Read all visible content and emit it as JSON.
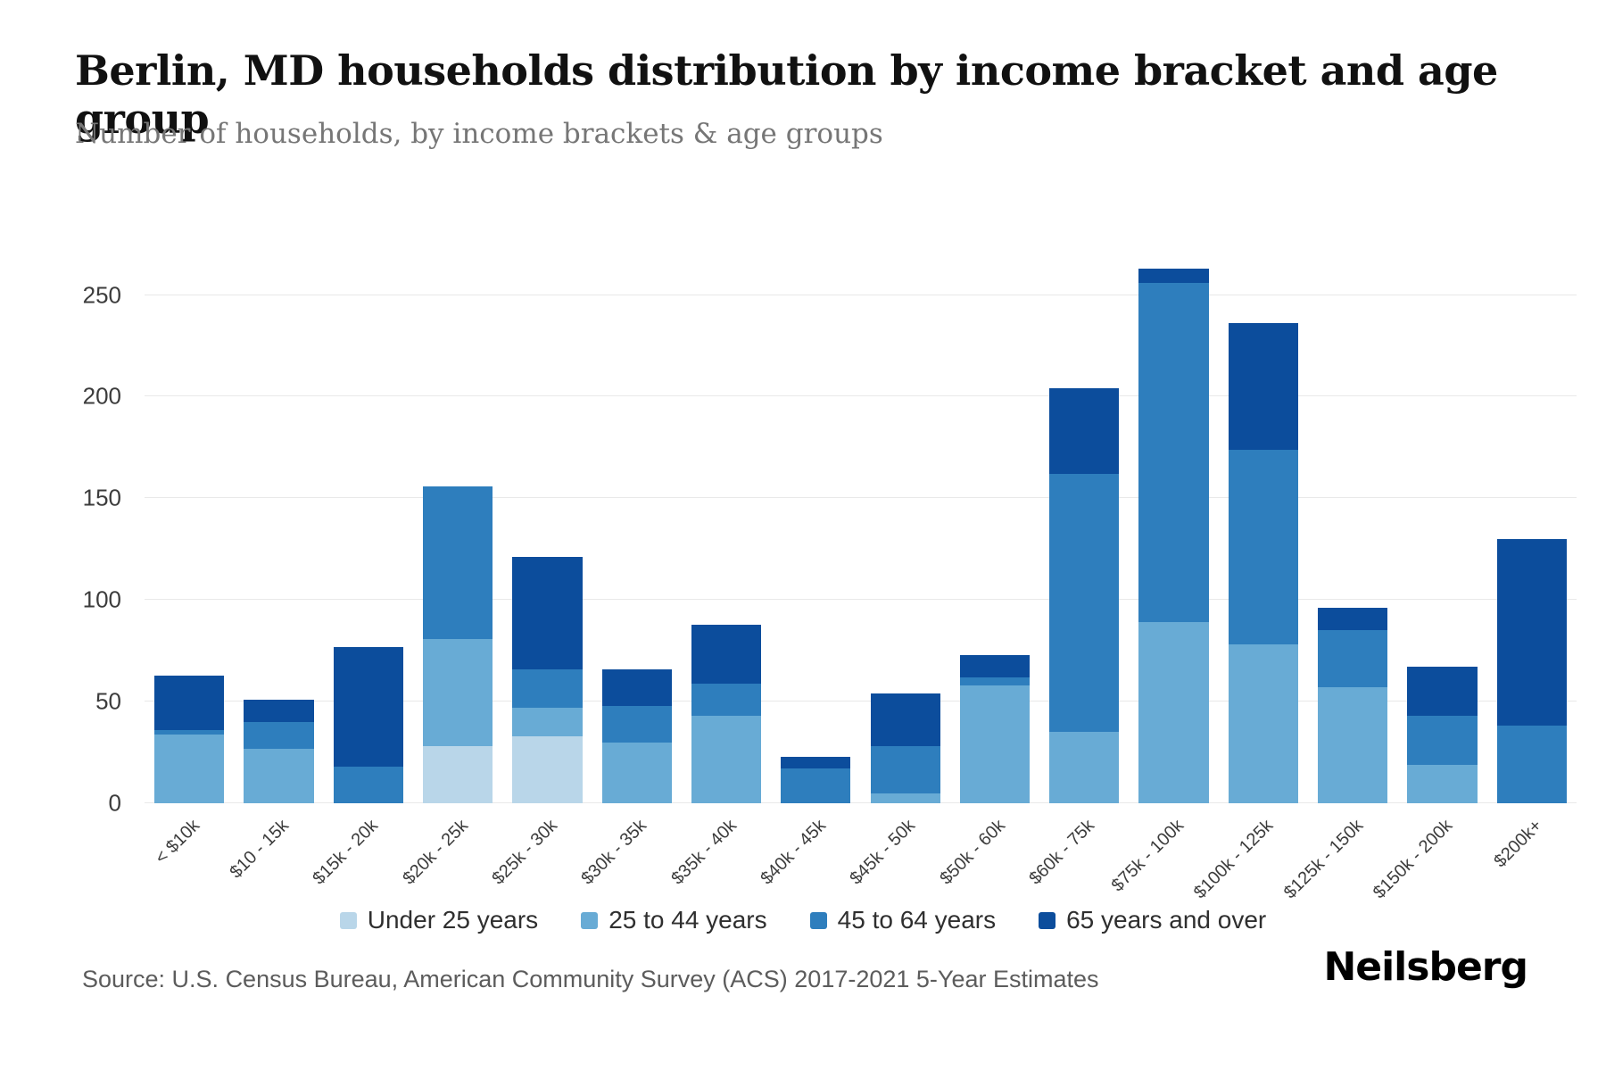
{
  "header": {
    "title": "Berlin, MD households distribution by income bracket and age group",
    "subtitle": "Number of households, by income brackets & age groups"
  },
  "footer": {
    "source": "Source: U.S. Census Bureau, American Community Survey (ACS) 2017-2021 5-Year Estimates",
    "brand": "Neilsberg"
  },
  "chart_data": {
    "type": "bar",
    "stacked": true,
    "title": "Berlin, MD households distribution by income bracket and age group",
    "subtitle": "Number of households, by income brackets & age groups",
    "xlabel": "",
    "ylabel": "",
    "ylim": [
      0,
      270
    ],
    "yticks": [
      0,
      50,
      100,
      150,
      200,
      250
    ],
    "grid": true,
    "legend_position": "bottom",
    "categories": [
      "< $10k",
      "$10 - 15k",
      "$15k - 20k",
      "$20k - 25k",
      "$25k - 30k",
      "$30k - 35k",
      "$35k - 40k",
      "$40k - 45k",
      "$45k - 50k",
      "$50k - 60k",
      "$60k - 75k",
      "$75k - 100k",
      "$100k - 125k",
      "$125k - 150k",
      "$150k - 200k",
      "$200k+"
    ],
    "series": [
      {
        "name": "Under 25 years",
        "color": "#b9d6e9",
        "values": [
          0,
          0,
          0,
          28,
          33,
          0,
          0,
          0,
          0,
          0,
          0,
          0,
          0,
          0,
          0,
          0
        ]
      },
      {
        "name": "25 to 44 years",
        "color": "#68abd5",
        "values": [
          34,
          27,
          0,
          53,
          14,
          30,
          43,
          0,
          5,
          58,
          35,
          89,
          78,
          57,
          19,
          0
        ]
      },
      {
        "name": "45 to 64 years",
        "color": "#2e7ebd",
        "values": [
          2,
          13,
          18,
          75,
          19,
          18,
          16,
          17,
          23,
          4,
          127,
          167,
          96,
          28,
          24,
          38
        ]
      },
      {
        "name": "65 years and over",
        "color": "#0c4d9c",
        "values": [
          27,
          11,
          59,
          0,
          55,
          18,
          29,
          6,
          26,
          11,
          42,
          7,
          62,
          11,
          24,
          92
        ]
      }
    ]
  }
}
